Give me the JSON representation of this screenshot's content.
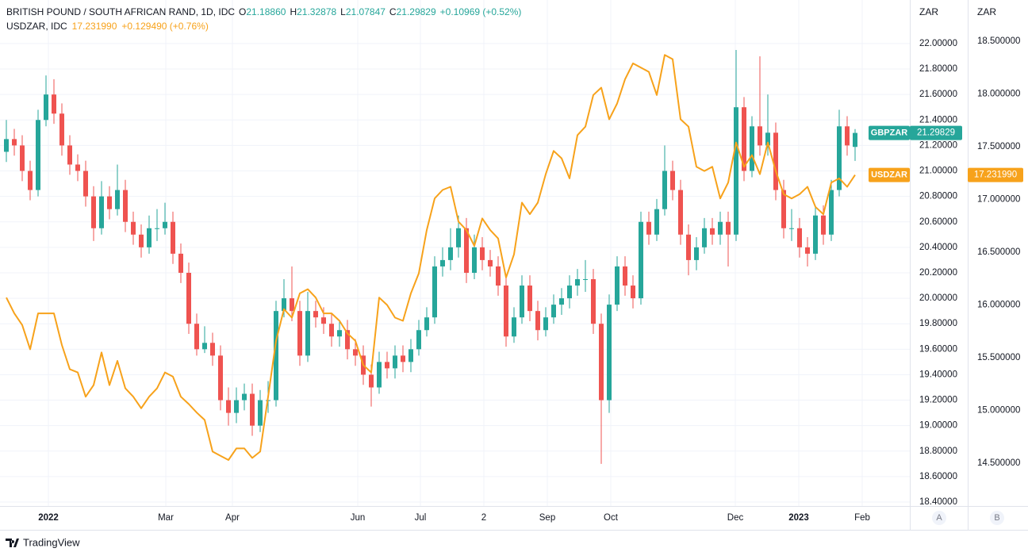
{
  "chart_data": {
    "type": "candlestick",
    "header": {
      "title": "BRITISH POUND / SOUTH AFRICAN RAND, 1D, IDC",
      "items": [
        {
          "key": "O",
          "value": "21.18860"
        },
        {
          "key": "H",
          "value": "21.32878"
        },
        {
          "key": "L",
          "value": "21.07847"
        },
        {
          "key": "C",
          "value": "21.29829"
        }
      ],
      "change": "+0.10969 (+0.52%)",
      "compare_title": "USDZAR, IDC",
      "compare_value": "17.231990",
      "compare_change": "+0.129490 (+0.76%)"
    },
    "yunit": "ZAR",
    "y2unit": "ZAR",
    "scale_buttons": [
      "A",
      "B"
    ],
    "brand": "TradingView",
    "xlim": [
      -0.8,
      113.9
    ],
    "xticks": [
      {
        "value": 5.3,
        "label": "2022"
      },
      {
        "value": 20.1,
        "label": "Mar"
      },
      {
        "value": 28.5,
        "label": "Apr"
      },
      {
        "value": 44.3,
        "label": "Jun"
      },
      {
        "value": 52.2,
        "label": "Jul"
      },
      {
        "value": 60.2,
        "label": "2"
      },
      {
        "value": 68.2,
        "label": "Sep"
      },
      {
        "value": 76.2,
        "label": "Oct"
      },
      {
        "value": 91.9,
        "label": "Dec"
      },
      {
        "value": 99.9,
        "label": "2023"
      },
      {
        "value": 107.9,
        "label": "Feb"
      }
    ],
    "ylim": [
      18.369,
      22.342
    ],
    "yticks": [
      {
        "value": 18.4,
        "label": "18.40000"
      },
      {
        "value": 18.6,
        "label": "18.60000"
      },
      {
        "value": 18.8,
        "label": "18.80000"
      },
      {
        "value": 19.0,
        "label": "19.00000"
      },
      {
        "value": 19.2,
        "label": "19.20000"
      },
      {
        "value": 19.4,
        "label": "19.40000"
      },
      {
        "value": 19.6,
        "label": "19.60000"
      },
      {
        "value": 19.8,
        "label": "19.80000"
      },
      {
        "value": 20.0,
        "label": "20.00000"
      },
      {
        "value": 20.2,
        "label": "20.20000"
      },
      {
        "value": 20.4,
        "label": "20.40000"
      },
      {
        "value": 20.6,
        "label": "20.60000"
      },
      {
        "value": 20.8,
        "label": "20.80000"
      },
      {
        "value": 21.0,
        "label": "21.00000"
      },
      {
        "value": 21.2,
        "label": "21.20000"
      },
      {
        "value": 21.4,
        "label": "21.40000"
      },
      {
        "value": 21.6,
        "label": "21.60000"
      },
      {
        "value": 21.8,
        "label": "21.80000"
      },
      {
        "value": 22.0,
        "label": "22.00000"
      }
    ],
    "y2lim": [
      14.094,
      18.891
    ],
    "y2ticks": [
      {
        "value": 14.5,
        "label": "14.500000"
      },
      {
        "value": 15.0,
        "label": "15.000000"
      },
      {
        "value": 15.5,
        "label": "15.500000"
      },
      {
        "value": 16.0,
        "label": "16.000000"
      },
      {
        "value": 16.5,
        "label": "16.500000"
      },
      {
        "value": 17.0,
        "label": "17.000000"
      },
      {
        "value": 17.5,
        "label": "17.500000"
      },
      {
        "value": 18.0,
        "label": "18.000000"
      },
      {
        "value": 18.5,
        "label": "18.500000"
      }
    ],
    "grid": true,
    "series": [
      {
        "name": "GBPZAR",
        "up_color": "#26a69a",
        "down_color": "#ef5350",
        "last_label": "21.29829",
        "open": [
          21.15,
          21.25,
          21.2,
          21.0,
          20.85,
          21.4,
          21.6,
          21.45,
          21.2,
          21.05,
          21.0,
          20.8,
          20.55,
          20.8,
          20.7,
          20.85,
          20.6,
          20.5,
          20.4,
          20.55,
          20.55,
          20.6,
          20.35,
          20.2,
          19.8,
          19.6,
          19.65,
          19.55,
          19.2,
          19.1,
          19.2,
          19.25,
          19.0,
          19.2,
          19.2,
          19.9,
          20.0,
          19.9,
          19.55,
          19.9,
          19.85,
          19.8,
          19.7,
          19.75,
          19.6,
          19.55,
          19.4,
          19.3,
          19.5,
          19.45,
          19.55,
          19.5,
          19.6,
          19.75,
          19.85,
          20.25,
          20.3,
          20.4,
          20.55,
          20.2,
          20.4,
          20.3,
          20.25,
          20.1,
          19.7,
          19.85,
          20.1,
          19.9,
          19.75,
          19.85,
          19.95,
          20.0,
          20.1,
          20.15,
          20.15,
          19.8,
          19.2,
          19.95,
          20.25,
          20.1,
          20.0,
          20.6,
          20.5,
          20.7,
          21.0,
          20.85,
          20.5,
          20.3,
          20.4,
          20.55,
          20.5,
          20.6,
          20.5,
          21.5,
          21.0,
          21.35,
          21.2,
          21.3,
          20.85,
          20.55,
          20.55,
          20.4,
          20.35,
          20.65,
          20.5,
          20.85,
          21.35,
          21.1886
        ],
        "high": [
          21.4,
          21.33,
          21.28,
          21.08,
          21.48,
          21.75,
          21.72,
          21.53,
          21.28,
          21.13,
          21.08,
          20.88,
          20.92,
          20.88,
          21.05,
          20.93,
          20.68,
          20.58,
          20.65,
          20.7,
          20.75,
          20.68,
          20.43,
          20.28,
          19.88,
          19.78,
          19.73,
          19.63,
          19.3,
          19.3,
          19.33,
          19.33,
          19.28,
          19.35,
          19.98,
          20.15,
          20.25,
          19.98,
          20.05,
          19.98,
          19.93,
          19.88,
          19.83,
          19.83,
          19.68,
          19.63,
          19.48,
          19.58,
          19.58,
          19.63,
          19.63,
          19.68,
          19.83,
          19.93,
          20.33,
          20.4,
          20.55,
          20.65,
          20.63,
          20.5,
          20.48,
          20.38,
          20.33,
          20.18,
          19.93,
          20.18,
          20.18,
          19.98,
          19.93,
          20.03,
          20.08,
          20.18,
          20.23,
          20.3,
          20.23,
          19.88,
          20.03,
          20.33,
          20.33,
          20.18,
          20.68,
          20.68,
          20.78,
          21.2,
          21.08,
          20.93,
          20.58,
          20.48,
          20.63,
          20.63,
          20.68,
          20.68,
          21.95,
          21.58,
          21.43,
          21.9,
          21.6,
          21.38,
          20.93,
          20.7,
          20.63,
          20.48,
          20.73,
          20.73,
          20.93,
          21.48,
          21.43,
          21.32878
        ],
        "low": [
          21.07,
          21.12,
          20.92,
          20.77,
          20.8,
          21.35,
          21.37,
          21.12,
          20.97,
          20.92,
          20.72,
          20.45,
          20.5,
          20.62,
          20.65,
          20.52,
          20.42,
          20.32,
          20.35,
          20.45,
          20.5,
          20.27,
          20.12,
          19.72,
          19.55,
          19.57,
          19.47,
          19.12,
          19.0,
          19.02,
          19.12,
          18.92,
          18.95,
          19.1,
          19.15,
          19.85,
          19.82,
          19.47,
          19.5,
          19.77,
          19.72,
          19.62,
          19.62,
          19.52,
          19.47,
          19.32,
          19.15,
          19.25,
          19.37,
          19.37,
          19.42,
          19.42,
          19.55,
          19.7,
          19.8,
          20.17,
          20.22,
          20.32,
          20.12,
          20.15,
          20.22,
          20.17,
          20.02,
          19.62,
          19.65,
          19.8,
          19.82,
          19.67,
          19.7,
          19.8,
          19.87,
          19.92,
          20.02,
          20.05,
          19.72,
          18.7,
          19.1,
          19.9,
          20.02,
          19.92,
          19.95,
          20.42,
          20.45,
          20.65,
          20.77,
          20.42,
          20.18,
          20.22,
          20.35,
          20.42,
          20.42,
          20.25,
          20.45,
          20.92,
          20.95,
          21.12,
          21.12,
          20.77,
          20.47,
          20.45,
          20.32,
          20.25,
          20.3,
          20.42,
          20.45,
          20.8,
          21.12,
          21.07847
        ],
        "close": [
          21.25,
          21.2,
          21.0,
          20.85,
          21.4,
          21.6,
          21.45,
          21.2,
          21.05,
          21.0,
          20.8,
          20.55,
          20.8,
          20.7,
          20.85,
          20.6,
          20.5,
          20.4,
          20.55,
          20.55,
          20.6,
          20.35,
          20.2,
          19.8,
          19.6,
          19.65,
          19.55,
          19.2,
          19.1,
          19.2,
          19.25,
          19.0,
          19.2,
          19.2,
          19.9,
          20.0,
          19.9,
          19.55,
          19.9,
          19.85,
          19.8,
          19.7,
          19.75,
          19.6,
          19.55,
          19.4,
          19.3,
          19.5,
          19.45,
          19.55,
          19.5,
          19.6,
          19.75,
          19.85,
          20.25,
          20.3,
          20.4,
          20.55,
          20.2,
          20.4,
          20.3,
          20.25,
          20.1,
          19.7,
          19.85,
          20.1,
          19.9,
          19.75,
          19.85,
          19.95,
          20.0,
          20.1,
          20.15,
          20.15,
          19.8,
          19.2,
          19.95,
          20.25,
          20.1,
          20.0,
          20.6,
          20.5,
          20.7,
          21.0,
          20.85,
          20.5,
          20.3,
          20.4,
          20.55,
          20.5,
          20.6,
          20.5,
          21.5,
          21.0,
          21.35,
          21.2,
          21.3,
          20.85,
          20.55,
          20.55,
          20.4,
          20.35,
          20.65,
          20.5,
          20.85,
          21.35,
          21.2,
          21.29829
        ]
      },
      {
        "name": "USDZAR",
        "axis": "y2",
        "color": "#f7a21b",
        "last_label": "17.231990",
        "values": [
          16.07,
          15.92,
          15.81,
          15.58,
          15.92,
          15.92,
          15.92,
          15.62,
          15.39,
          15.36,
          15.13,
          15.24,
          15.55,
          15.24,
          15.47,
          15.21,
          15.13,
          15.02,
          15.13,
          15.21,
          15.36,
          15.32,
          15.13,
          15.06,
          14.98,
          14.91,
          14.61,
          14.57,
          14.53,
          14.64,
          14.64,
          14.55,
          14.61,
          15.13,
          15.66,
          15.96,
          15.88,
          16.11,
          16.15,
          16.07,
          15.92,
          15.92,
          15.85,
          15.73,
          15.66,
          15.43,
          15.36,
          16.07,
          16.0,
          15.88,
          15.85,
          16.11,
          16.3,
          16.71,
          17.01,
          17.09,
          17.12,
          16.79,
          16.71,
          16.56,
          16.82,
          16.71,
          16.63,
          16.26,
          16.48,
          16.97,
          16.86,
          16.97,
          17.24,
          17.46,
          17.39,
          17.2,
          17.61,
          17.69,
          17.99,
          18.06,
          17.76,
          17.91,
          18.14,
          18.29,
          18.25,
          18.21,
          17.99,
          18.37,
          18.33,
          17.76,
          17.69,
          17.31,
          17.27,
          17.31,
          17.01,
          17.16,
          17.54,
          17.31,
          17.42,
          17.24,
          17.54,
          17.27,
          17.05,
          17.01,
          17.05,
          17.12,
          16.93,
          16.86,
          17.16,
          17.2,
          17.12,
          17.23199
        ]
      }
    ]
  }
}
